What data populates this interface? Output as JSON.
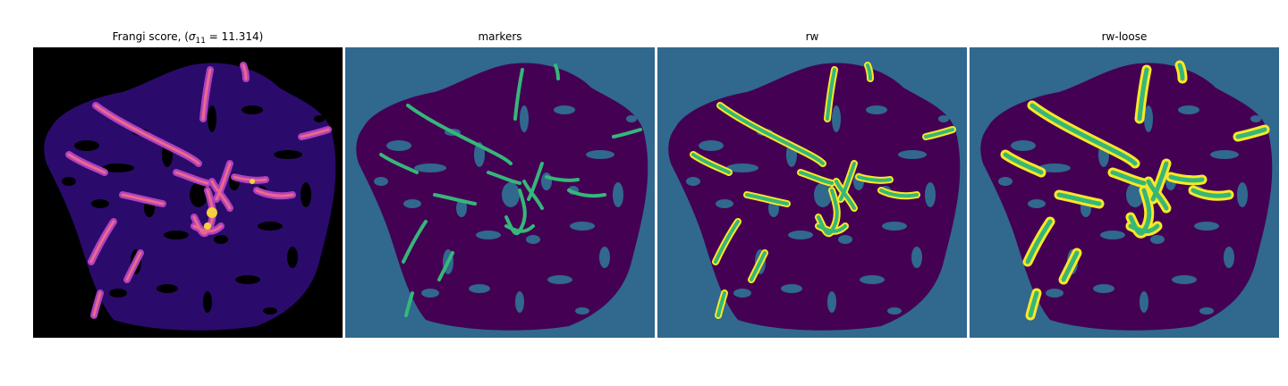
{
  "panels": [
    {
      "id": "frangi",
      "title_prefix": "Frangi score, (",
      "title_sigma": "σ",
      "title_sub": "11",
      "title_suffix": " = 11.314)",
      "colormap": "plasma-like (black background)"
    },
    {
      "id": "markers",
      "title": "markers",
      "colormap": "viridis"
    },
    {
      "id": "rw",
      "title": "rw",
      "colormap": "viridis"
    },
    {
      "id": "rw-loose",
      "title": "rw-loose",
      "colormap": "viridis"
    }
  ],
  "colors": {
    "frangi_bg": "#000000",
    "frangi_region": "#2a0b6b",
    "frangi_vessel": "#c84ec8",
    "frangi_peak": "#f6d040",
    "viridis_bg": "#31688e",
    "viridis_region": "#440154",
    "viridis_marker": "#35b779",
    "viridis_edge": "#fde725"
  }
}
